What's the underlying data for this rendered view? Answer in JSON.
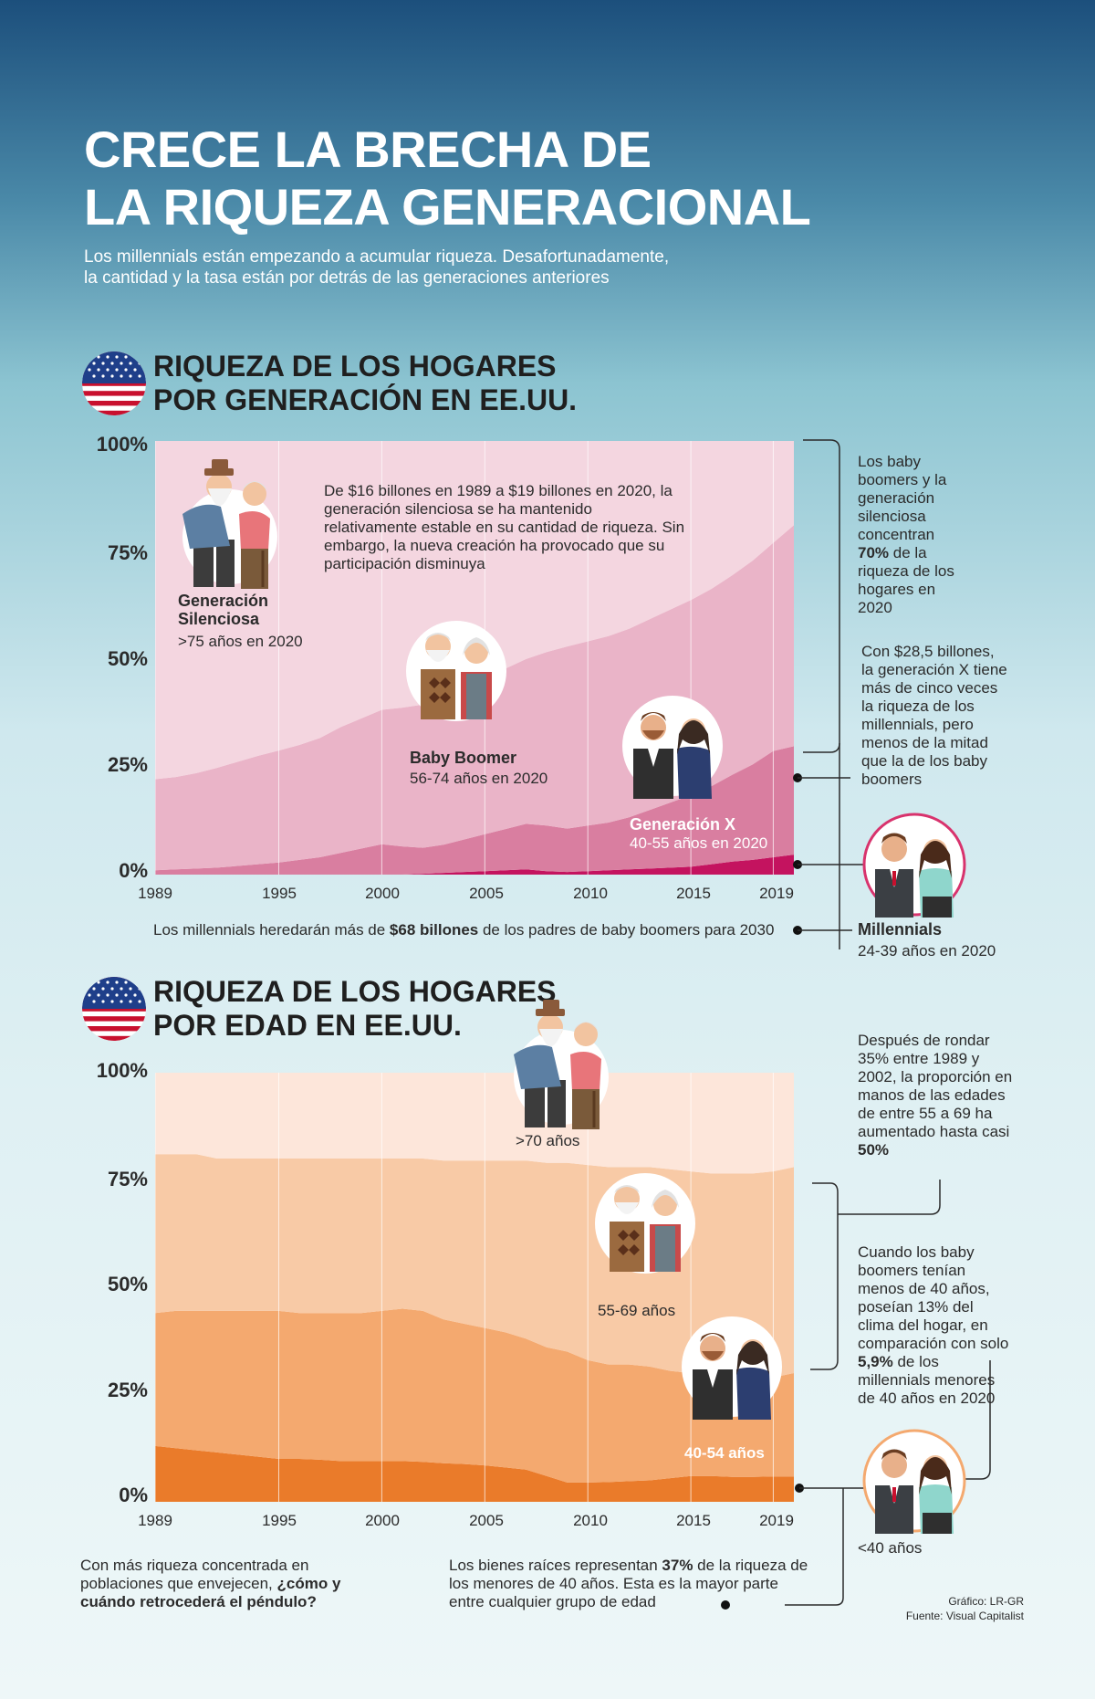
{
  "header": {
    "title_line1": "CRECE LA BRECHA DE",
    "title_line2": "LA RIQUEZA GENERACIONAL",
    "subtitle_line1": "Los millennials están empezando a acumular riqueza. Desafortunadamente,",
    "subtitle_line2": "la cantidad y la tasa están por detrás de las generaciones anteriores"
  },
  "section1": {
    "title_line1": "RIQUEZA DE LOS HOGARES",
    "title_line2": "POR GENERACIÓN EN EE.UU.",
    "note_silent": "De $16 billones en 1989 a $19 billones en 2020, la generación silenciosa se ha mantenido relativamente estable en su cantidad de riqueza. Sin embargo, la nueva creación ha provocado que su participación disminuya",
    "label_silent_name": "Generación Silenciosa",
    "label_silent_age": ">75 años en 2020",
    "label_boomer_name": "Baby Boomer",
    "label_boomer_age": "56-74 años en 2020",
    "label_genx_name": "Generación X",
    "label_genx_age": "40-55 años en 2020",
    "label_mill_name": "Millennials",
    "label_mill_age": "24-39 años en 2020",
    "side_note_1_a": "Los baby boomers y la generación silenciosa concentran ",
    "side_note_1_b": "70%",
    "side_note_1_c": " de la riqueza de los hogares en 2020",
    "side_note_2": "Con $28,5 billones, la generación X tiene más de cinco veces la riqueza de los millennials, pero menos de la mitad que la de los baby boomers",
    "bottom_note_a": "Los millennials heredarán más de ",
    "bottom_note_b": "$68 billones",
    "bottom_note_c": " de los padres de baby boomers para 2030"
  },
  "section2": {
    "title_line1": "RIQUEZA DE LOS HOGARES",
    "title_line2": "POR EDAD EN EE.UU.",
    "label_70": ">70 años",
    "label_55": "55-69 años",
    "label_40": "40-54 años",
    "label_u40": "<40 años",
    "side_note_1_a": "Después de rondar 35% entre 1989 y 2002, la proporción en manos de las edades de entre 55 a 69 ha aumentado hasta casi ",
    "side_note_1_b": "50%",
    "side_note_2_a": "Cuando los baby boomers tenían menos de 40 años, poseían 13% del clima del hogar, en comparación con solo ",
    "side_note_2_b": "5,9%",
    "side_note_2_c": " de los millennials menores de 40 años en 2020",
    "bottom_left_a": "Con más riqueza concentrada en poblaciones que envejecen, ",
    "bottom_left_b": "¿cómo y cuándo retrocederá el péndulo?",
    "bottom_mid_a": "Los bienes raíces representan ",
    "bottom_mid_b": "37%",
    "bottom_mid_c": " de la riqueza de los menores de 40 años. Esta es la mayor parte entre cualquier grupo de edad"
  },
  "credits": {
    "line1": "Gráfico: LR-GR",
    "line2": "Fuente: Visual Capitalist"
  },
  "colors": {
    "silent": "#f4d6e0",
    "boomer": "#eab4c8",
    "genx": "#d97ea0",
    "mill": "#c4135f",
    "age70": "#fde6da",
    "age55": "#f8caa6",
    "age40": "#f4a96f",
    "ageU40": "#ea7b2a"
  },
  "chart_data": [
    {
      "type": "area",
      "title": "Riqueza de los hogares por generación en EE.UU.",
      "xlabel": "",
      "ylabel": "",
      "ylim": [
        0,
        100
      ],
      "y_ticks": [
        "0%",
        "25%",
        "50%",
        "75%",
        "100%"
      ],
      "x_ticks": [
        "1989",
        "1995",
        "2000",
        "2005",
        "2010",
        "2015",
        "2019"
      ],
      "x": [
        1989,
        1990,
        1991,
        1992,
        1993,
        1994,
        1995,
        1996,
        1997,
        1998,
        1999,
        2000,
        2001,
        2002,
        2003,
        2004,
        2005,
        2006,
        2007,
        2008,
        2009,
        2010,
        2011,
        2012,
        2013,
        2014,
        2015,
        2016,
        2017,
        2018,
        2019,
        2020
      ],
      "stacked": true,
      "series": [
        {
          "name": "Millennials",
          "values": [
            0,
            0,
            0,
            0,
            0,
            0,
            0,
            0,
            0,
            0,
            0,
            0,
            0,
            0.2,
            0.4,
            0.6,
            0.8,
            1.0,
            1.2,
            0.8,
            0.6,
            0.8,
            1.0,
            1.2,
            1.4,
            1.6,
            1.8,
            2.4,
            3.0,
            3.4,
            4.0,
            4.6
          ]
        },
        {
          "name": "Generación X",
          "values": [
            1.0,
            1.2,
            1.4,
            1.6,
            2.0,
            2.4,
            2.8,
            3.4,
            4.0,
            5.0,
            6.0,
            7.0,
            6.5,
            6.0,
            6.5,
            7.5,
            8.5,
            9.5,
            10.5,
            10.5,
            10.0,
            10.5,
            11.0,
            12.0,
            13.5,
            15.0,
            16.5,
            18.0,
            20.0,
            22.0,
            24.5,
            25.0
          ]
        },
        {
          "name": "Baby Boomer",
          "values": [
            21.0,
            21.3,
            22.0,
            23.0,
            24.0,
            25.0,
            25.8,
            26.5,
            27.5,
            29.0,
            30.0,
            31.0,
            32.0,
            33.0,
            34.0,
            35.0,
            36.0,
            37.0,
            38.0,
            40.0,
            42.0,
            42.5,
            43.0,
            43.5,
            44.0,
            44.5,
            45.0,
            45.5,
            46.0,
            47.0,
            48.0,
            51.0
          ]
        },
        {
          "name": "Generación Silenciosa",
          "values": [
            78.0,
            77.5,
            76.6,
            75.4,
            74.0,
            72.6,
            71.4,
            70.1,
            68.5,
            66.0,
            64.0,
            62.0,
            61.5,
            60.8,
            59.1,
            56.9,
            54.7,
            52.5,
            50.3,
            48.7,
            47.4,
            46.2,
            45.0,
            43.3,
            41.1,
            38.9,
            36.7,
            34.1,
            31.0,
            27.6,
            23.5,
            19.4
          ]
        }
      ]
    },
    {
      "type": "area",
      "title": "Riqueza de los hogares por edad en EE.UU.",
      "xlabel": "",
      "ylabel": "",
      "ylim": [
        0,
        100
      ],
      "y_ticks": [
        "0%",
        "25%",
        "50%",
        "75%",
        "100%"
      ],
      "x_ticks": [
        "1989",
        "1995",
        "2000",
        "2005",
        "2010",
        "2015",
        "2019"
      ],
      "x": [
        1989,
        1990,
        1991,
        1992,
        1993,
        1994,
        1995,
        1996,
        1997,
        1998,
        1999,
        2000,
        2001,
        2002,
        2003,
        2004,
        2005,
        2006,
        2007,
        2008,
        2009,
        2010,
        2011,
        2012,
        2013,
        2014,
        2015,
        2016,
        2017,
        2018,
        2019,
        2020
      ],
      "stacked": true,
      "series": [
        {
          "name": "<40 años",
          "values": [
            13.0,
            12.5,
            12.0,
            11.5,
            11.0,
            10.5,
            10.0,
            10.0,
            9.8,
            9.5,
            9.5,
            9.5,
            9.5,
            9.3,
            9.0,
            8.8,
            8.5,
            8.0,
            7.5,
            6.0,
            4.5,
            4.5,
            4.6,
            4.8,
            5.0,
            5.5,
            6.0,
            6.0,
            5.8,
            5.8,
            5.9,
            5.9
          ]
        },
        {
          "name": "40-54 años",
          "values": [
            31.0,
            32.0,
            32.5,
            33.0,
            33.5,
            34.0,
            34.5,
            34.0,
            34.2,
            34.5,
            34.5,
            35.0,
            35.5,
            35.2,
            33.5,
            32.7,
            32.0,
            31.5,
            30.5,
            30.0,
            30.5,
            28.5,
            27.4,
            27.2,
            26.5,
            25.0,
            24.0,
            23.0,
            23.2,
            23.2,
            23.1,
            24.1
          ]
        },
        {
          "name": "55-69 años",
          "values": [
            37.0,
            36.5,
            36.5,
            35.5,
            35.5,
            35.5,
            35.5,
            36.0,
            36.0,
            36.0,
            36.0,
            35.5,
            35.0,
            35.5,
            37.0,
            38.0,
            39.0,
            40.0,
            41.5,
            43.0,
            44.0,
            45.5,
            46.0,
            46.0,
            46.5,
            47.0,
            47.0,
            47.5,
            47.5,
            47.5,
            48.0,
            48.0
          ]
        },
        {
          "name": ">70 años",
          "values": [
            19.0,
            19.0,
            19.0,
            20.0,
            20.0,
            20.0,
            20.0,
            20.0,
            20.0,
            20.0,
            20.0,
            20.0,
            20.0,
            20.0,
            20.5,
            20.5,
            20.5,
            20.5,
            20.5,
            21.0,
            21.0,
            21.5,
            22.0,
            22.0,
            22.0,
            22.5,
            23.0,
            23.5,
            23.5,
            23.5,
            23.0,
            22.0
          ]
        }
      ]
    }
  ]
}
